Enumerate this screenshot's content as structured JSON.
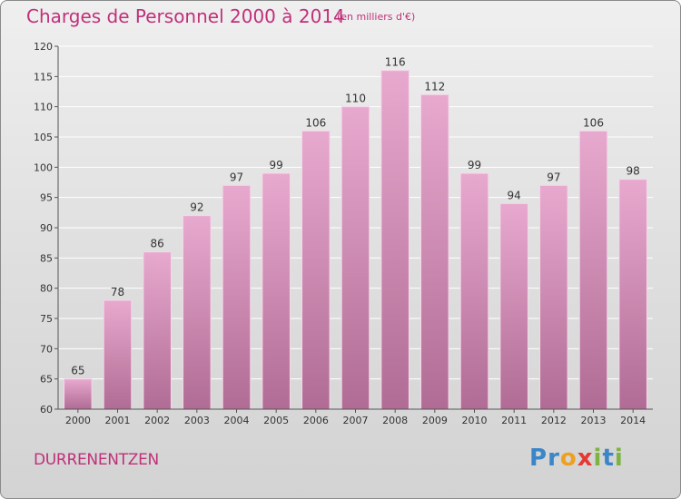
{
  "header": {
    "title": "Charges de Personnel 2000 à 2014",
    "subtitle": "(en milliers d'€)"
  },
  "footer": {
    "commune": "DURRENENTZEN",
    "logo": {
      "letters": [
        "P",
        "r",
        "o",
        "x",
        "i",
        "t",
        "i"
      ],
      "colors": [
        "#3a86c8",
        "#3a86c8",
        "#f0a020",
        "#e53935",
        "#7cb342",
        "#3a86c8",
        "#7cb342"
      ]
    }
  },
  "chart_data": {
    "type": "bar",
    "categories": [
      "2000",
      "2001",
      "2002",
      "2003",
      "2004",
      "2005",
      "2006",
      "2007",
      "2008",
      "2009",
      "2010",
      "2011",
      "2012",
      "2013",
      "2014"
    ],
    "values": [
      65,
      78,
      86,
      92,
      97,
      99,
      106,
      110,
      116,
      112,
      99,
      94,
      97,
      106,
      98
    ],
    "ylim": [
      60,
      120
    ],
    "yticks": [
      60,
      65,
      70,
      75,
      80,
      85,
      90,
      95,
      100,
      105,
      110,
      115,
      120
    ],
    "grid": true,
    "colors": {
      "bar_top": "#e8a9cf",
      "bar_bottom": "#b06c94",
      "axis": "#555555"
    }
  }
}
